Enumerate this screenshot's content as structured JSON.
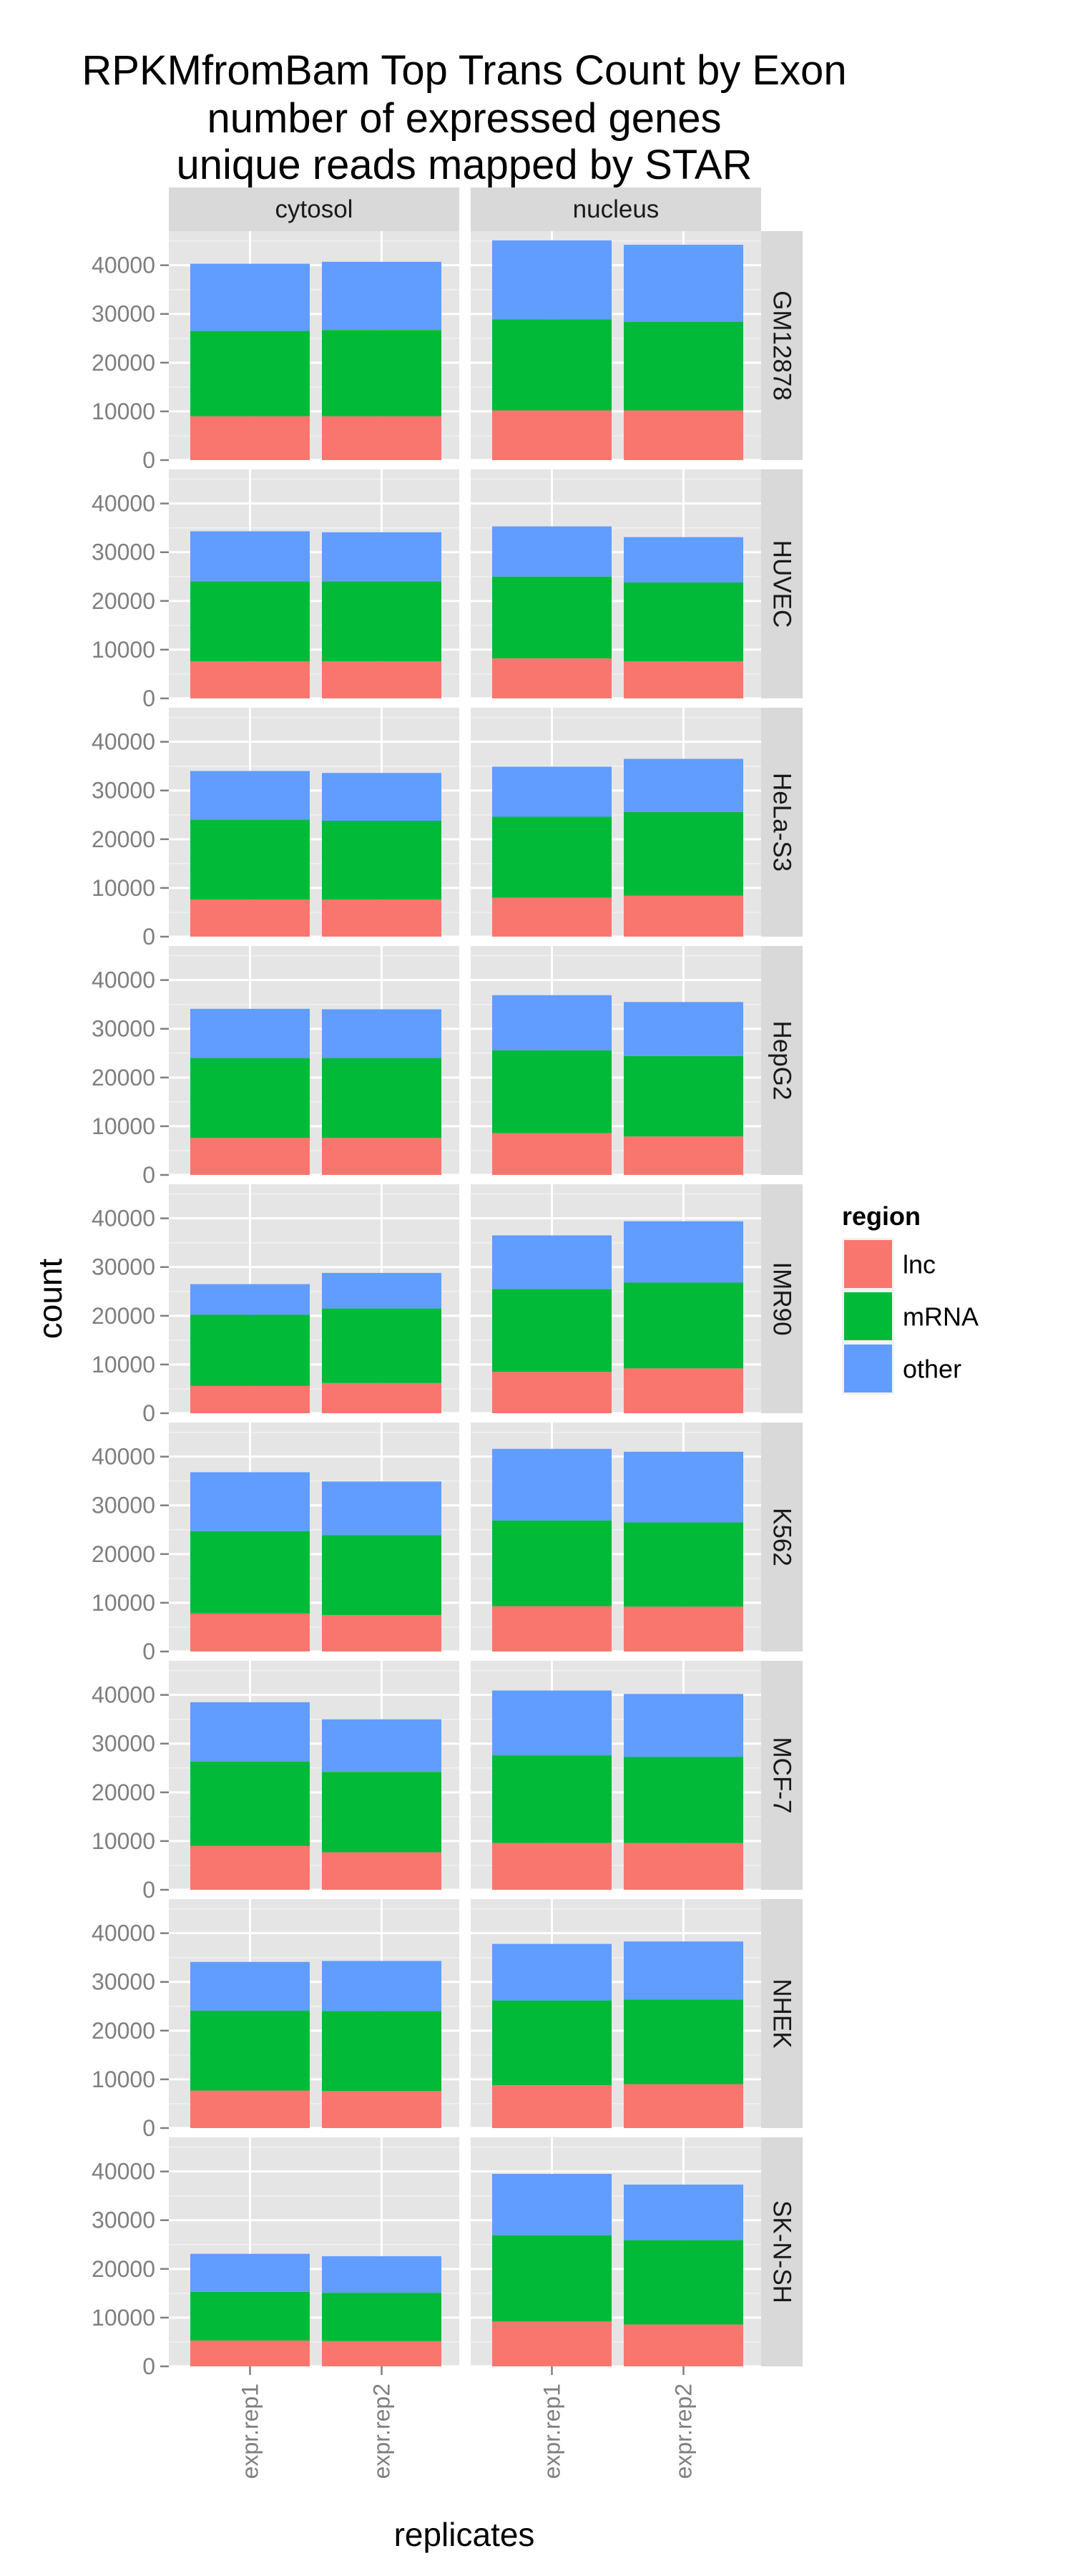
{
  "chart_data": {
    "type": "bar",
    "stacked": true,
    "faceted": true,
    "title": [
      "RPKMfromBam Top Trans Count by Exon",
      "number of expressed genes",
      "unique reads mapped by STAR"
    ],
    "xlabel": "replicates",
    "ylabel": "count",
    "ylim": [
      0,
      47000
    ],
    "yticks": [
      0,
      10000,
      20000,
      30000,
      40000
    ],
    "grid": true,
    "categories": [
      "expr.rep1",
      "expr.rep2"
    ],
    "facet_columns": [
      "cytosol",
      "nucleus"
    ],
    "facet_rows": [
      "GM12878",
      "HUVEC",
      "HeLa-S3",
      "HepG2",
      "IMR90",
      "K562",
      "MCF-7",
      "NHEK",
      "SK-N-SH"
    ],
    "legend": {
      "title": "region",
      "position": "right",
      "items": [
        {
          "label": "lnc",
          "color": "#F8766D"
        },
        {
          "label": "mRNA",
          "color": "#00BA38"
        },
        {
          "label": "other",
          "color": "#619CFF"
        }
      ]
    },
    "panels": [
      {
        "row": "GM12878",
        "col": "cytosol",
        "bars": [
          {
            "lnc": 9000,
            "mRNA": 17500,
            "other": 13800
          },
          {
            "lnc": 9000,
            "mRNA": 17700,
            "other": 14000
          }
        ]
      },
      {
        "row": "GM12878",
        "col": "nucleus",
        "bars": [
          {
            "lnc": 10200,
            "mRNA": 18700,
            "other": 16200
          },
          {
            "lnc": 10200,
            "mRNA": 18200,
            "other": 15800
          }
        ]
      },
      {
        "row": "HUVEC",
        "col": "cytosol",
        "bars": [
          {
            "lnc": 7600,
            "mRNA": 16400,
            "other": 10300
          },
          {
            "lnc": 7600,
            "mRNA": 16400,
            "other": 10100
          }
        ]
      },
      {
        "row": "HUVEC",
        "col": "nucleus",
        "bars": [
          {
            "lnc": 8200,
            "mRNA": 16800,
            "other": 10300
          },
          {
            "lnc": 7600,
            "mRNA": 16200,
            "other": 9300
          }
        ]
      },
      {
        "row": "HeLa-S3",
        "col": "cytosol",
        "bars": [
          {
            "lnc": 7600,
            "mRNA": 16400,
            "other": 10000
          },
          {
            "lnc": 7600,
            "mRNA": 16200,
            "other": 9800
          }
        ]
      },
      {
        "row": "HeLa-S3",
        "col": "nucleus",
        "bars": [
          {
            "lnc": 8000,
            "mRNA": 16600,
            "other": 10300
          },
          {
            "lnc": 8400,
            "mRNA": 17200,
            "other": 10900
          }
        ]
      },
      {
        "row": "HepG2",
        "col": "cytosol",
        "bars": [
          {
            "lnc": 7600,
            "mRNA": 16400,
            "other": 10100
          },
          {
            "lnc": 7600,
            "mRNA": 16400,
            "other": 10000
          }
        ]
      },
      {
        "row": "HepG2",
        "col": "nucleus",
        "bars": [
          {
            "lnc": 8600,
            "mRNA": 17000,
            "other": 11300
          },
          {
            "lnc": 7900,
            "mRNA": 16500,
            "other": 11100
          }
        ]
      },
      {
        "row": "IMR90",
        "col": "cytosol",
        "bars": [
          {
            "lnc": 5600,
            "mRNA": 14600,
            "other": 6300
          },
          {
            "lnc": 6200,
            "mRNA": 15300,
            "other": 7300
          }
        ]
      },
      {
        "row": "IMR90",
        "col": "nucleus",
        "bars": [
          {
            "lnc": 8500,
            "mRNA": 17000,
            "other": 11000
          },
          {
            "lnc": 9200,
            "mRNA": 17600,
            "other": 12600
          }
        ]
      },
      {
        "row": "K562",
        "col": "cytosol",
        "bars": [
          {
            "lnc": 7800,
            "mRNA": 16900,
            "other": 12100
          },
          {
            "lnc": 7500,
            "mRNA": 16400,
            "other": 11000
          }
        ]
      },
      {
        "row": "K562",
        "col": "nucleus",
        "bars": [
          {
            "lnc": 9300,
            "mRNA": 17600,
            "other": 14700
          },
          {
            "lnc": 9200,
            "mRNA": 17300,
            "other": 14500
          }
        ]
      },
      {
        "row": "MCF-7",
        "col": "cytosol",
        "bars": [
          {
            "lnc": 9000,
            "mRNA": 17300,
            "other": 12200
          },
          {
            "lnc": 7700,
            "mRNA": 16500,
            "other": 10800
          }
        ]
      },
      {
        "row": "MCF-7",
        "col": "nucleus",
        "bars": [
          {
            "lnc": 9600,
            "mRNA": 18000,
            "other": 13300
          },
          {
            "lnc": 9600,
            "mRNA": 17700,
            "other": 12900
          }
        ]
      },
      {
        "row": "NHEK",
        "col": "cytosol",
        "bars": [
          {
            "lnc": 7700,
            "mRNA": 16400,
            "other": 10000
          },
          {
            "lnc": 7600,
            "mRNA": 16400,
            "other": 10300
          }
        ]
      },
      {
        "row": "NHEK",
        "col": "nucleus",
        "bars": [
          {
            "lnc": 8800,
            "mRNA": 17400,
            "other": 11600
          },
          {
            "lnc": 9000,
            "mRNA": 17400,
            "other": 11900
          }
        ]
      },
      {
        "row": "SK-N-SH",
        "col": "cytosol",
        "bars": [
          {
            "lnc": 5300,
            "mRNA": 10000,
            "other": 7800
          },
          {
            "lnc": 5200,
            "mRNA": 9900,
            "other": 7500
          }
        ]
      },
      {
        "row": "SK-N-SH",
        "col": "nucleus",
        "bars": [
          {
            "lnc": 9200,
            "mRNA": 17700,
            "other": 12600
          },
          {
            "lnc": 8600,
            "mRNA": 17300,
            "other": 11400
          }
        ]
      }
    ]
  }
}
